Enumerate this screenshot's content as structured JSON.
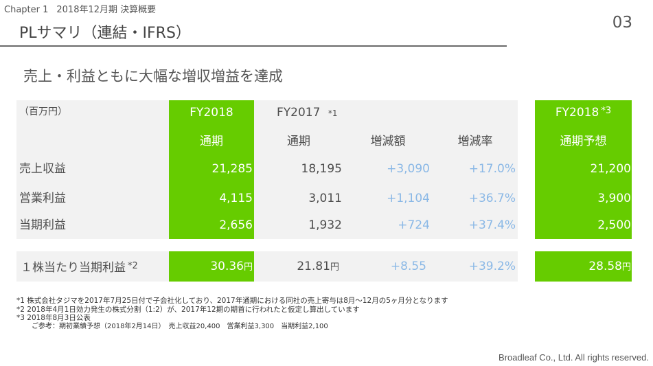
{
  "header": {
    "chapter": "Chapter 1",
    "period": "2018年12月期 決算概要",
    "title": "PLサマリ（連結・IFRS）",
    "page_number": "03"
  },
  "headline": "売上・利益ともに大幅な増収増益を達成",
  "table": {
    "unit_label": "（百万円）",
    "fy2018_label": "FY2018",
    "fy2017_label": "FY2017",
    "fy2017_note": "*1",
    "forecast_label": "FY2018",
    "forecast_note": "*3",
    "col_full_year_2018": "通期",
    "col_full_year_2017": "通期",
    "col_change_amount": "増減額",
    "col_change_rate": "増減率",
    "col_forecast": "通期予想",
    "rows": [
      {
        "label": "売上収益",
        "fy2018": "21,285",
        "fy2017": "18,195",
        "change": "+3,090",
        "rate": "+17.0%",
        "forecast": "21,200"
      },
      {
        "label": "営業利益",
        "fy2018": "4,115",
        "fy2017": "3,011",
        "change": "+1,104",
        "rate": "+36.7%",
        "forecast": "3,900"
      },
      {
        "label": "当期利益",
        "fy2018": "2,656",
        "fy2017": "1,932",
        "change": "+724",
        "rate": "+37.4%",
        "forecast": "2,500"
      }
    ],
    "eps": {
      "label": "１株当たり当期利益",
      "note": "*2",
      "fy2018": "30.36",
      "fy2017": "21.81",
      "change": "+8.55",
      "rate": "+39.2%",
      "forecast": "28.58",
      "yen": "円"
    }
  },
  "notes": [
    "*1 株式会社タジマを2017年7月25日付で子会社化しており、2017年通期における同社の売上寄与は8月〜12月の5ヶ月分となります",
    "*2 2018年4月1日効力発生の株式分割（1:2）が、2017年12期の期首に行われたと仮定し算出しています",
    "*3 2018年8月3日公表",
    "ご参考：期初業績予想（2018年2月14日）　売上収益20,400　営業利益3,300　当期利益2,100"
  ],
  "footer": "Broadleaf Co., Ltd. All rights reserved.",
  "colors": {
    "accent_green": "#66cc00",
    "positive_blue": "#8ab8e6",
    "panel_gray": "#f2f2f2"
  }
}
